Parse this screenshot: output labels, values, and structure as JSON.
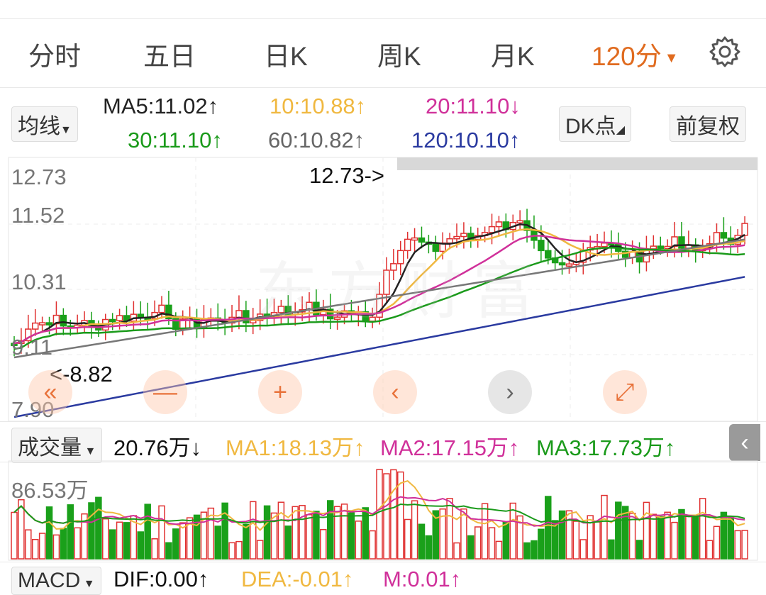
{
  "tabs": [
    {
      "label": "分时"
    },
    {
      "label": "五日"
    },
    {
      "label": "日K"
    },
    {
      "label": "周K"
    },
    {
      "label": "月K"
    },
    {
      "label": "120分"
    }
  ],
  "ma_indicator": {
    "selector_label": "均线",
    "ma5": "MA5:11.02↑",
    "ma10": "10:10.88↑",
    "ma20": "20:11.10↓",
    "ma30": "30:11.10↑",
    "ma60": "60:10.82↑",
    "ma120": "120:10.10↑"
  },
  "dk_button": "DK点",
  "adjust_button": "前复权",
  "price_axis": [
    "12.73",
    "11.52",
    "10.31",
    "9.11",
    "7.90"
  ],
  "annotations": {
    "high": "12.73->",
    "low": "<-8.82"
  },
  "watermark": "东方财富",
  "volume_indicator": {
    "selector_label": "成交量",
    "vol": "20.76万↓",
    "ma1": "MA1:18.13万↑",
    "ma2": "MA2:17.15万↑",
    "ma3": "MA3:17.73万↑",
    "axis_max": "86.53万"
  },
  "macd_indicator": {
    "selector_label": "MACD",
    "dif": "DIF:0.00↑",
    "dea": "DEA:-0.01↑",
    "m": "M:0.01↑"
  },
  "colors": {
    "up": "#e03030",
    "down": "#1aa01a",
    "ma5": "#222222",
    "ma10": "#f0b840",
    "ma20": "#d0309a",
    "ma30": "#1a9a1a",
    "ma60": "#777777",
    "ma120": "#2a3aa0",
    "accent": "#e06b1f"
  },
  "nav_icons": [
    "double-left-icon",
    "minus-icon",
    "plus-icon",
    "chevron-left-icon",
    "chevron-right-icon",
    "expand-icon"
  ]
}
